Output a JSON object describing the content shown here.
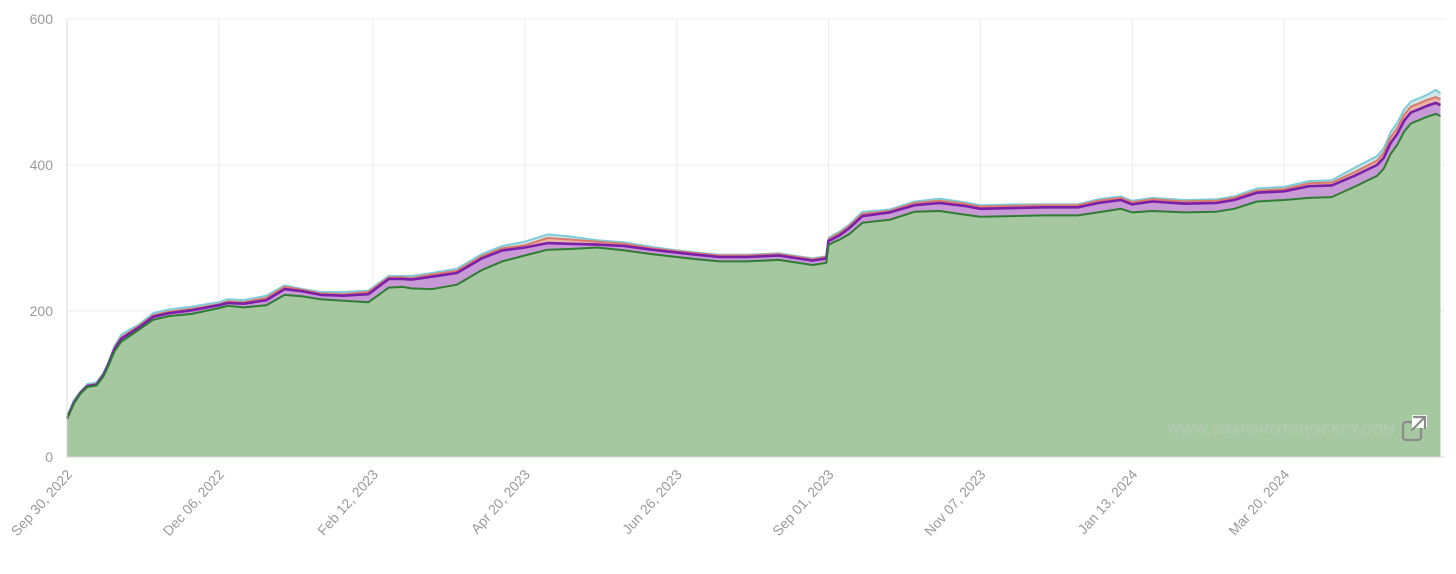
{
  "chart_data": {
    "type": "area",
    "ylim": [
      0,
      600
    ],
    "xlim": [
      "2022-09-30",
      "2024-05-30"
    ],
    "grid": true,
    "yticks": [
      0,
      200,
      400,
      600
    ],
    "xticks": [
      {
        "date": "2022-09-30",
        "label": "Sep 30, 2022"
      },
      {
        "date": "2022-12-06",
        "label": "Dec 06, 2022"
      },
      {
        "date": "2023-02-12",
        "label": "Feb 12, 2023"
      },
      {
        "date": "2023-04-20",
        "label": "Apr 20, 2023"
      },
      {
        "date": "2023-06-26",
        "label": "Jun 26, 2023"
      },
      {
        "date": "2023-09-01",
        "label": "Sep 01, 2023"
      },
      {
        "date": "2023-11-07",
        "label": "Nov 07, 2023"
      },
      {
        "date": "2024-01-13",
        "label": "Jan 13, 2024"
      },
      {
        "date": "2024-03-20",
        "label": "Mar 20, 2024"
      }
    ],
    "x": [
      "2022-09-30",
      "2022-10-03",
      "2022-10-06",
      "2022-10-09",
      "2022-10-13",
      "2022-10-16",
      "2022-10-18",
      "2022-10-21",
      "2022-10-24",
      "2022-11-01",
      "2022-11-07",
      "2022-11-14",
      "2022-11-24",
      "2022-12-06",
      "2022-12-10",
      "2022-12-17",
      "2022-12-27",
      "2023-01-04",
      "2023-01-12",
      "2023-01-20",
      "2023-01-30",
      "2023-02-10",
      "2023-02-19",
      "2023-02-25",
      "2023-03-01",
      "2023-03-10",
      "2023-03-21",
      "2023-04-01",
      "2023-04-10",
      "2023-04-20",
      "2023-04-30",
      "2023-05-10",
      "2023-05-22",
      "2023-06-03",
      "2023-06-15",
      "2023-06-26",
      "2023-07-05",
      "2023-07-15",
      "2023-07-27",
      "2023-08-10",
      "2023-08-25",
      "2023-08-31",
      "2023-09-01",
      "2023-09-03",
      "2023-09-06",
      "2023-09-10",
      "2023-09-16",
      "2023-09-28",
      "2023-10-09",
      "2023-10-20",
      "2023-10-31",
      "2023-11-07",
      "2023-11-21",
      "2023-12-05",
      "2023-12-20",
      "2023-12-29",
      "2024-01-08",
      "2024-01-13",
      "2024-01-22",
      "2024-02-05",
      "2024-02-19",
      "2024-02-27",
      "2024-03-08",
      "2024-03-20",
      "2024-03-31",
      "2024-04-10",
      "2024-04-20",
      "2024-04-30",
      "2024-05-03",
      "2024-05-06",
      "2024-05-09",
      "2024-05-12",
      "2024-05-15",
      "2024-05-19",
      "2024-05-22",
      "2024-05-26",
      "2024-05-28"
    ],
    "series": [
      {
        "color": "#7fcbd9",
        "values": [
          55,
          78,
          90,
          100,
          102,
          115,
          128,
          152,
          168,
          182,
          197,
          202,
          206,
          212,
          216,
          215,
          221,
          235,
          230,
          226,
          226,
          228,
          248,
          248,
          248,
          252,
          258,
          278,
          289,
          295,
          305,
          302,
          297,
          294,
          288,
          283,
          280,
          277,
          277,
          279,
          272,
          275,
          300,
          304,
          309,
          318,
          336,
          339,
          350,
          354,
          349,
          345,
          346,
          346,
          346,
          353,
          357,
          351,
          355,
          352,
          353,
          357,
          368,
          370,
          378,
          379,
          396,
          412,
          423,
          445,
          458,
          476,
          487,
          492,
          496,
          503,
          498
        ]
      },
      {
        "color": "#d97a6a",
        "values": [
          54,
          75,
          89,
          98,
          100,
          113,
          126,
          150,
          164,
          180,
          194,
          199,
          203,
          209,
          213,
          212,
          218,
          233,
          229,
          224,
          223,
          226,
          246,
          246,
          245,
          250,
          255,
          275,
          286,
          290,
          300,
          298,
          295,
          292,
          286,
          282,
          279,
          276,
          276,
          278,
          271,
          274,
          298,
          302,
          307,
          316,
          333,
          337,
          348,
          351,
          347,
          343,
          344,
          345,
          345,
          351,
          355,
          349,
          353,
          350,
          351,
          355,
          365,
          367,
          375,
          376,
          390,
          406,
          417,
          438,
          451,
          469,
          480,
          485,
          489,
          493,
          490
        ]
      },
      {
        "color": "#7a1fa8",
        "values": [
          53,
          74,
          88,
          97,
          99,
          112,
          125,
          148,
          162,
          178,
          192,
          197,
          201,
          208,
          211,
          210,
          215,
          230,
          227,
          222,
          221,
          223,
          244,
          244,
          243,
          247,
          252,
          272,
          283,
          287,
          293,
          292,
          291,
          289,
          284,
          280,
          277,
          274,
          274,
          276,
          269,
          272,
          296,
          299,
          304,
          313,
          330,
          335,
          345,
          348,
          344,
          340,
          341,
          342,
          342,
          348,
          352,
          346,
          350,
          347,
          348,
          352,
          362,
          364,
          371,
          372,
          385,
          400,
          410,
          430,
          443,
          461,
          472,
          477,
          481,
          485,
          482
        ]
      },
      {
        "color": "#2e7d32",
        "values": [
          52,
          73,
          87,
          96,
          98,
          110,
          123,
          145,
          158,
          175,
          188,
          193,
          196,
          204,
          207,
          205,
          208,
          222,
          220,
          216,
          214,
          212,
          232,
          233,
          231,
          230,
          236,
          256,
          268,
          276,
          284,
          285,
          287,
          283,
          278,
          274,
          271,
          268,
          268,
          270,
          263,
          266,
          290,
          294,
          298,
          305,
          321,
          325,
          336,
          337,
          332,
          329,
          330,
          331,
          331,
          335,
          340,
          335,
          337,
          335,
          336,
          340,
          350,
          352,
          355,
          356,
          370,
          385,
          395,
          415,
          428,
          446,
          457,
          462,
          466,
          470,
          467
        ]
      }
    ]
  },
  "watermark": {
    "text": "WWW.SNAPSHOTSHOCKEY.COM",
    "icon": "external-link-icon"
  }
}
